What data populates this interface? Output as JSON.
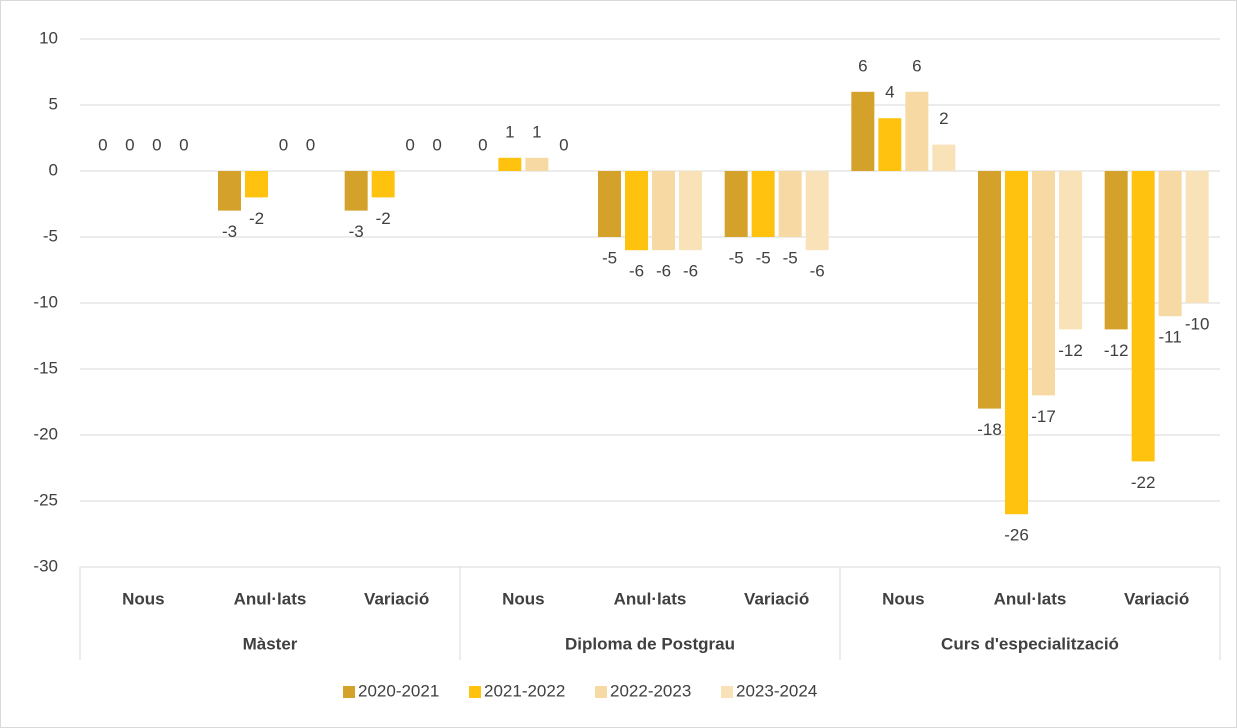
{
  "chart_data": {
    "type": "bar",
    "categories": [
      "Nous",
      "Anul·lats",
      "Variació",
      "Nous",
      "Anul·lats",
      "Variació",
      "Nous",
      "Anul·lats",
      "Variació"
    ],
    "groups": [
      "Màster",
      "Diploma de Postgrau",
      "Curs d'especialització"
    ],
    "series": [
      {
        "name": "2020-2021",
        "color": "#d4a12a",
        "values": [
          0,
          -3,
          -3,
          0,
          -5,
          -5,
          6,
          -18,
          -12
        ]
      },
      {
        "name": "2021-2022",
        "color": "#ffc20e",
        "values": [
          0,
          -2,
          -2,
          1,
          -6,
          -5,
          4,
          -26,
          -22
        ]
      },
      {
        "name": "2022-2023",
        "color": "#f6d9a3",
        "values": [
          0,
          0,
          0,
          1,
          -6,
          -5,
          6,
          -17,
          -11
        ]
      },
      {
        "name": "2023-2024",
        "color": "#f9e2b8",
        "values": [
          0,
          0,
          0,
          0,
          -6,
          -6,
          2,
          -12,
          -10
        ]
      }
    ],
    "ylim": [
      -30,
      10
    ],
    "yticks": [
      -30,
      -25,
      -20,
      -15,
      -10,
      -5,
      0,
      5,
      10
    ],
    "grid": true,
    "legend": "bottom"
  }
}
